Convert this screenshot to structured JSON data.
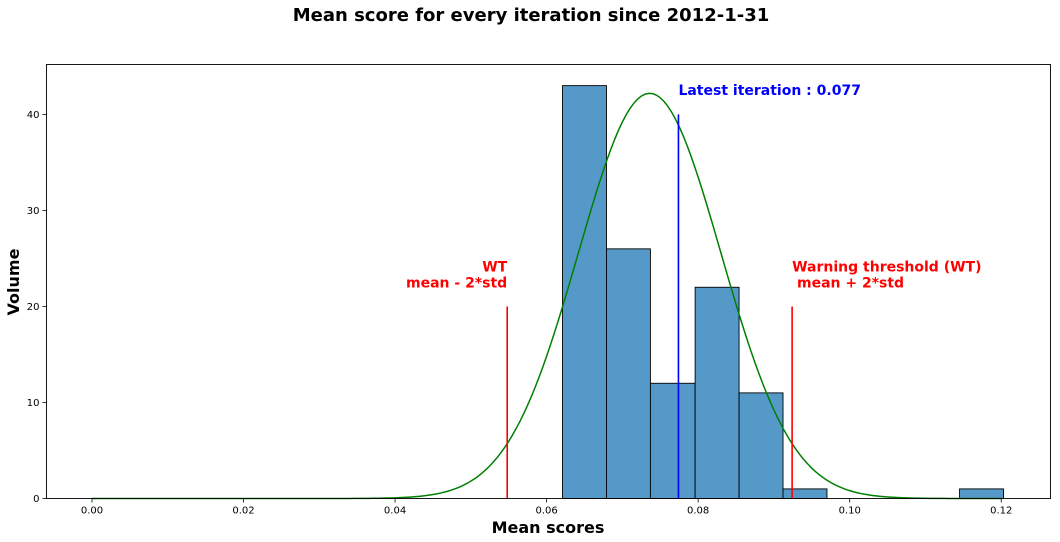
{
  "chart_data": {
    "type": "bar",
    "title": "Mean score for every iteration since 2012-1-31",
    "xlabel": "Mean scores",
    "ylabel": "Volume",
    "xlim": [
      -0.006,
      0.1265
    ],
    "ylim": [
      0,
      45.2
    ],
    "xticks": [
      0.0,
      0.02,
      0.04,
      0.06,
      0.08,
      0.1,
      0.12
    ],
    "xtick_labels": [
      "0.00",
      "0.02",
      "0.04",
      "0.06",
      "0.08",
      "0.10",
      "0.12"
    ],
    "yticks": [
      0,
      10,
      20,
      30,
      40
    ],
    "ytick_labels": [
      "0",
      "10",
      "20",
      "30",
      "40"
    ],
    "grid": false,
    "bar_color": "#5599c8",
    "histogram": [
      {
        "x0": 0.0621,
        "x1": 0.0679,
        "count": 43
      },
      {
        "x0": 0.0679,
        "x1": 0.0737,
        "count": 26
      },
      {
        "x0": 0.0737,
        "x1": 0.0796,
        "count": 12
      },
      {
        "x0": 0.0796,
        "x1": 0.0854,
        "count": 22
      },
      {
        "x0": 0.0854,
        "x1": 0.0912,
        "count": 11
      },
      {
        "x0": 0.0912,
        "x1": 0.097,
        "count": 1
      },
      {
        "x0": 0.1145,
        "x1": 0.1203,
        "count": 1
      }
    ],
    "normal_curve": {
      "mean": 0.0736,
      "std": 0.0094,
      "peak": 42.2,
      "x_range": [
        0.0,
        0.12
      ],
      "color": "#008000"
    },
    "lines": [
      {
        "name": "latest",
        "x": 0.0774,
        "y0": 0,
        "y1": 40,
        "color": "#0000ff"
      },
      {
        "name": "lower-threshold",
        "x": 0.0548,
        "y0": 0,
        "y1": 20,
        "color": "#ff0000"
      },
      {
        "name": "upper-threshold",
        "x": 0.0924,
        "y0": 0,
        "y1": 20,
        "color": "#ff0000"
      }
    ],
    "annotations": [
      {
        "name": "latest-annotation",
        "lines": [
          "Latest iteration : 0.077"
        ],
        "x": 0.0774,
        "y": 42.0,
        "anchor": "start",
        "color": "#0000ff"
      },
      {
        "name": "lower-threshold-annotation",
        "lines": [
          "WT",
          "mean - 2*std"
        ],
        "x": 0.0548,
        "y": 22.0,
        "anchor": "end",
        "color": "#ff0000"
      },
      {
        "name": "upper-threshold-annotation",
        "lines": [
          "Warning threshold (WT)",
          " mean + 2*std"
        ],
        "x": 0.0924,
        "y": 22.0,
        "anchor": "start",
        "color": "#ff0000"
      }
    ]
  }
}
